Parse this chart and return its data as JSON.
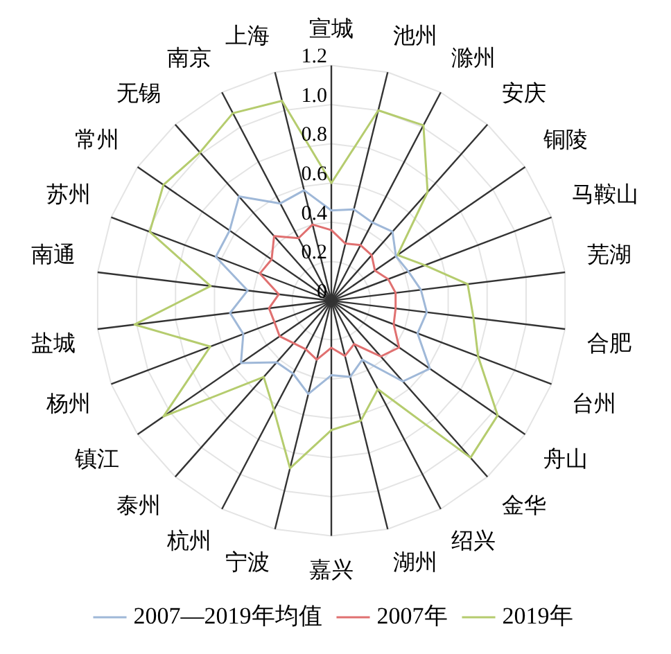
{
  "chart_data": {
    "type": "radar",
    "categories": [
      "宣城",
      "池州",
      "滁州",
      "安庆",
      "铜陵",
      "马鞍山",
      "芜湖",
      "合肥",
      "台州",
      "舟山",
      "金华",
      "绍兴",
      "湖州",
      "嘉兴",
      "宁波",
      "杭州",
      "泰州",
      "镇江",
      "杨州",
      "盐城",
      "南通",
      "苏州",
      "常州",
      "无锡",
      "南京",
      "上海"
    ],
    "series": [
      {
        "name": "2007—2019年均值",
        "color": "#9fb8d8",
        "values": [
          0.46,
          0.48,
          0.45,
          0.47,
          0.4,
          0.42,
          0.46,
          0.49,
          0.47,
          0.61,
          0.55,
          0.34,
          0.4,
          0.38,
          0.49,
          0.42,
          0.42,
          0.56,
          0.48,
          0.52,
          0.43,
          0.63,
          0.63,
          0.71,
          0.56,
          0.58
        ]
      },
      {
        "name": "2007年",
        "color": "#e07070",
        "values": [
          0.36,
          0.3,
          0.32,
          0.31,
          0.27,
          0.31,
          0.33,
          0.33,
          0.34,
          0.42,
          0.38,
          0.25,
          0.29,
          0.24,
          0.31,
          0.28,
          0.29,
          0.32,
          0.31,
          0.32,
          0.27,
          0.39,
          0.37,
          0.44,
          0.36,
          0.4
        ]
      },
      {
        "name": "2019年",
        "color": "#b5cc6e",
        "values": [
          0.6,
          1.0,
          1.01,
          0.74,
          0.41,
          0.51,
          0.7,
          0.73,
          0.8,
          1.03,
          1.07,
          0.51,
          0.63,
          0.66,
          0.88,
          0.63,
          0.52,
          1.04,
          0.66,
          1.01,
          0.62,
          0.99,
          1.04,
          1.01,
          1.08,
          1.05
        ]
      }
    ],
    "ylim": [
      0,
      1.2
    ],
    "yticks": [
      0,
      0.2,
      0.4,
      0.6,
      0.8,
      {
        "value": 1.0,
        "label": "1.0"
      },
      {
        "value": 1.2,
        "label": "1.2"
      }
    ],
    "grid": true,
    "legend": "bottom",
    "marker": "none",
    "line_style": "solid"
  }
}
